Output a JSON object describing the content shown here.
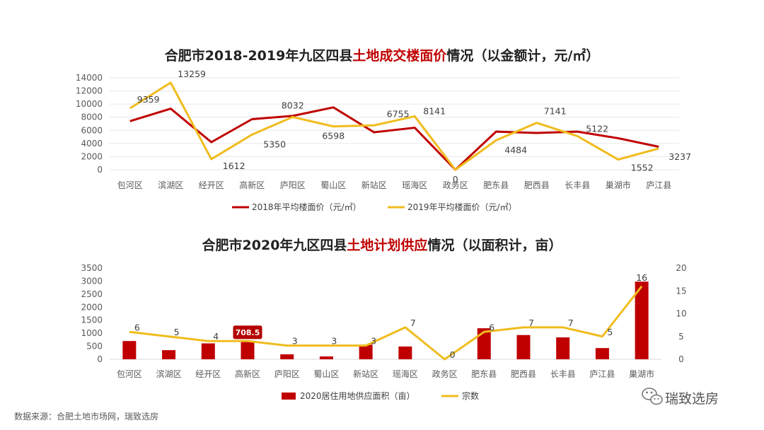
{
  "source_note": "数据来源：合肥土地市场网，瑞致选房",
  "watermark": "瑞致选房",
  "colors": {
    "dark_red": "#c00000",
    "gold": "#f0bc1e",
    "grid": "#e6e6e6"
  },
  "chart_data": [
    {
      "type": "line",
      "title_parts": [
        "合肥市2018-2019年九区四县",
        "土地成交楼面价",
        "情况（以金额计，元/㎡）"
      ],
      "categories": [
        "包河区",
        "滨湖区",
        "经开区",
        "高新区",
        "庐阳区",
        "蜀山区",
        "新站区",
        "瑶海区",
        "政务区",
        "肥东县",
        "肥西县",
        "长丰县",
        "巢湖市",
        "庐江县"
      ],
      "ylim": [
        0,
        14000
      ],
      "yticks": [
        0,
        2000,
        4000,
        6000,
        8000,
        10000,
        12000,
        14000
      ],
      "grid": true,
      "legend_position": "bottom",
      "series": [
        {
          "name": "2018年平均楼面价（元/㎡）",
          "color": "#c00000",
          "values": [
            7400,
            9300,
            4200,
            7700,
            8200,
            9500,
            5700,
            6400,
            0,
            5800,
            5600,
            5800,
            4800,
            3500
          ]
        },
        {
          "name": "2019年平均楼面价（元/㎡）",
          "color": "#f0bc1e",
          "values": [
            9359,
            13259,
            1612,
            5350,
            8032,
            6598,
            6755,
            8141,
            0,
            4484,
            7141,
            5122,
            1552,
            3237
          ],
          "data_labels": [
            "9359",
            "13259",
            "1612",
            "5350",
            "8032",
            "6598",
            "6755",
            "8141",
            "0",
            "4484",
            "7141",
            "5122",
            "1552",
            "3237"
          ]
        }
      ]
    },
    {
      "type": "bar+line",
      "title_parts": [
        "合肥市2020年九区四县",
        "土地计划供应",
        "情况（以面积计，亩）"
      ],
      "categories": [
        "包河区",
        "滨湖区",
        "经开区",
        "高新区",
        "庐阳区",
        "蜀山区",
        "新站区",
        "瑶海区",
        "政务区",
        "肥东县",
        "肥西县",
        "长丰县",
        "庐江县",
        "巢湖市"
      ],
      "ylim_left": [
        0,
        3500
      ],
      "yticks_left": [
        0,
        500,
        1000,
        1500,
        2000,
        2500,
        3000,
        3500
      ],
      "ylim_right": [
        0,
        20
      ],
      "yticks_right": [
        0,
        5,
        10,
        15,
        20
      ],
      "legend_position": "bottom",
      "bars": {
        "name": "2020居住用地供应面积（亩）",
        "color": "#c00000",
        "values": [
          700,
          350,
          610,
          708.5,
          190,
          110,
          560,
          490,
          0,
          1190,
          930,
          840,
          430,
          2980
        ]
      },
      "callout": {
        "index": 3,
        "label": "708.5"
      },
      "line": {
        "name": "宗数",
        "color": "#f0bc1e",
        "values": [
          6,
          5,
          4,
          4,
          3,
          3,
          3,
          7,
          0,
          6,
          7,
          7,
          5,
          16
        ],
        "data_labels": [
          "6",
          "5",
          "4",
          "4",
          "3",
          "3",
          "3",
          "7",
          "0",
          "6",
          "7",
          "7",
          "5",
          "16"
        ]
      }
    }
  ]
}
